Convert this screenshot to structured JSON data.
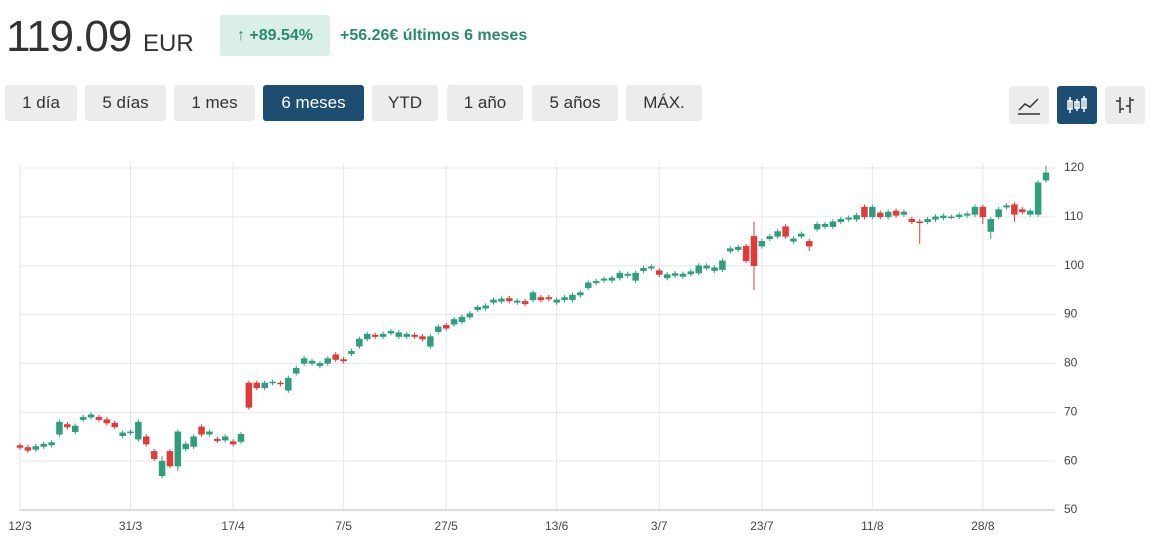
{
  "header": {
    "price": "119.09",
    "currency": "EUR",
    "change_pct": "↑ +89.54%",
    "change_abs": "+56.26€ últimos 6 meses"
  },
  "ranges": [
    "1 día",
    "5 días",
    "1 mes",
    "6 meses",
    "YTD",
    "1 año",
    "5 años",
    "MÁX."
  ],
  "active_range": "6 meses",
  "chart_data": {
    "type": "candlestick",
    "up_color": "#2f9e7f",
    "down_color": "#e03a3a",
    "grid": true,
    "categories": [
      "12/3",
      null,
      null,
      null,
      null,
      null,
      null,
      null,
      null,
      null,
      null,
      null,
      null,
      null,
      "31/3",
      null,
      null,
      null,
      null,
      null,
      null,
      null,
      null,
      null,
      null,
      null,
      null,
      "17/4",
      null,
      null,
      null,
      null,
      null,
      null,
      null,
      null,
      null,
      null,
      null,
      null,
      null,
      "7/5",
      null,
      null,
      null,
      null,
      null,
      null,
      null,
      null,
      null,
      null,
      null,
      null,
      "27/5",
      null,
      null,
      null,
      null,
      null,
      null,
      null,
      null,
      null,
      null,
      null,
      null,
      null,
      "13/6",
      null,
      null,
      null,
      null,
      null,
      null,
      null,
      null,
      null,
      null,
      null,
      null,
      "3/7",
      null,
      null,
      null,
      null,
      null,
      null,
      null,
      null,
      null,
      null,
      null,
      null,
      "23/7",
      null,
      null,
      null,
      null,
      null,
      null,
      null,
      null,
      null,
      null,
      null,
      null,
      null,
      "11/8",
      null,
      null,
      null,
      null,
      null,
      null,
      null,
      null,
      null,
      null,
      null,
      null,
      null,
      "28/8",
      null,
      null,
      null,
      null,
      null,
      null,
      null,
      null
    ],
    "open": [
      63.2,
      62.8,
      62.4,
      63,
      63.3,
      65.5,
      67.5,
      66,
      68.5,
      69,
      69,
      68.5,
      67.8,
      65.2,
      65.8,
      64.5,
      65,
      62,
      57,
      62,
      59,
      62.5,
      63,
      67,
      65.5,
      64.5,
      64.3,
      64,
      64,
      76,
      76,
      75,
      76,
      76,
      74.5,
      78,
      80,
      80,
      79.5,
      80,
      81.8,
      80.8,
      82,
      83.5,
      85,
      85.8,
      85.5,
      86.2,
      85.5,
      85.5,
      85.8,
      85.5,
      83.5,
      86.5,
      87.8,
      88,
      88.5,
      89.5,
      91,
      91.3,
      92.5,
      92.7,
      93.3,
      92.5,
      92.7,
      93,
      93.5,
      93.5,
      92.5,
      93,
      93,
      94,
      95.5,
      96.5,
      97,
      97,
      97.5,
      98,
      97,
      99,
      99.5,
      99,
      97.5,
      98,
      97.8,
      98.3,
      98.5,
      99.5,
      99,
      99.2,
      103,
      103.3,
      104,
      106,
      104,
      105.5,
      106,
      108,
      105,
      106,
      105,
      107.5,
      108,
      108,
      109,
      109.5,
      109.5,
      112,
      110,
      110.8,
      110,
      111.2,
      110.5,
      109.5,
      109,
      109,
      109.5,
      109.8,
      110,
      110,
      110.3,
      110.5,
      112,
      107,
      110,
      112,
      112.5,
      111.5,
      110.5,
      110.5,
      117.5
    ],
    "high": [
      63.7,
      63.3,
      63.5,
      64,
      64.3,
      68.5,
      68,
      67.7,
      69.5,
      70,
      69.5,
      69,
      68.3,
      66.3,
      66.5,
      68.5,
      65.5,
      62.5,
      61,
      62.5,
      66.5,
      64,
      65.5,
      67.5,
      66.5,
      65,
      65.5,
      64.5,
      66,
      76.5,
      76.5,
      76.5,
      76.7,
      76.5,
      77.5,
      79.5,
      81.5,
      81,
      80.5,
      81.5,
      82.3,
      81.3,
      83,
      85.5,
      86.5,
      86.3,
      86.5,
      87.1,
      86.8,
      86.5,
      86.3,
      86,
      86,
      88,
      88.3,
      89.5,
      90,
      90.7,
      92,
      92.3,
      93.5,
      93.7,
      93.8,
      93.3,
      93.2,
      95,
      94,
      94,
      93.5,
      94,
      94.5,
      95,
      97,
      97.3,
      97.8,
      98,
      99,
      98.8,
      99,
      100,
      100.3,
      99.5,
      98.7,
      98.9,
      98.8,
      99.3,
      100.5,
      100.5,
      100.1,
      101.5,
      104,
      104.3,
      104.5,
      109,
      105.5,
      106.5,
      107.5,
      108.5,
      106,
      107,
      105.5,
      109,
      109,
      109.5,
      110,
      110.3,
      110.8,
      112.5,
      112.5,
      111.3,
      111.5,
      111.7,
      111.5,
      110,
      109.5,
      110,
      110.5,
      110.7,
      110.5,
      110.9,
      111.1,
      112.5,
      112.5,
      110,
      112,
      112.8,
      113,
      112,
      111.7,
      117.5,
      120.5
    ],
    "low": [
      62.3,
      61.7,
      61.9,
      62.5,
      62.8,
      65,
      66.5,
      65.5,
      68,
      68.5,
      68,
      67.3,
      66.5,
      64.7,
      65.3,
      64,
      63,
      60,
      56.5,
      58.5,
      58,
      62,
      62.5,
      65,
      65,
      63.7,
      63.8,
      63,
      63.5,
      70.5,
      74.5,
      74.5,
      75.5,
      75.3,
      74,
      77.5,
      79.5,
      79.5,
      79,
      79.5,
      80.3,
      80,
      81.5,
      83,
      84.5,
      85,
      85,
      85.7,
      85,
      85,
      85,
      84.5,
      83,
      86,
      86.7,
      87.5,
      88,
      89,
      90.5,
      90.8,
      92,
      92.2,
      92.3,
      92,
      91.7,
      92.5,
      92.5,
      92.7,
      92,
      92.5,
      92.5,
      93.5,
      95,
      96,
      96.5,
      96.5,
      97,
      97.5,
      96.5,
      98.5,
      99,
      97.7,
      97,
      97.5,
      97.3,
      97.8,
      98,
      99,
      98.5,
      98.7,
      102.5,
      102.8,
      100.5,
      95,
      103.5,
      105,
      105.5,
      105.5,
      104.5,
      105.5,
      103,
      107,
      107.5,
      107.5,
      108.5,
      109,
      109,
      109.5,
      109.5,
      109.5,
      109.5,
      109.8,
      110,
      108.5,
      104.5,
      108.5,
      109,
      109.3,
      109.5,
      109.5,
      109.8,
      110,
      108.5,
      105.5,
      109.5,
      111.5,
      109,
      110.5,
      110,
      110,
      117
    ],
    "close": [
      62.8,
      62.2,
      63,
      63.5,
      63.8,
      68,
      67,
      67.2,
      69,
      69.5,
      68.5,
      67.8,
      67,
      65.8,
      66,
      68,
      63.5,
      60.5,
      60,
      59,
      66,
      63.5,
      65,
      65.5,
      66,
      64.2,
      65,
      63.5,
      65.5,
      71,
      75,
      76,
      76.2,
      75.8,
      77,
      79,
      81,
      80.5,
      80,
      81,
      80.8,
      80.5,
      82.5,
      85,
      86,
      85.5,
      86,
      86.6,
      86.3,
      86,
      85.5,
      85,
      85.5,
      87.5,
      87.2,
      89,
      89.5,
      90.2,
      91.5,
      91.8,
      93,
      93.2,
      92.8,
      92.8,
      92.2,
      94.5,
      93,
      93.2,
      93,
      93.5,
      94,
      94.5,
      96.5,
      96.8,
      97.3,
      97.5,
      98.5,
      98.3,
      98.5,
      99.5,
      99.8,
      98.2,
      98.2,
      98.4,
      98.3,
      98.8,
      100,
      100,
      99.6,
      101,
      103.5,
      103.8,
      101,
      100,
      105,
      106,
      107,
      106,
      105.5,
      106.5,
      104,
      108.5,
      108.5,
      109,
      109.5,
      109.8,
      110.3,
      110,
      112,
      110,
      111,
      110.3,
      111,
      109,
      108.8,
      109.5,
      110,
      110.2,
      110,
      110.4,
      110.6,
      112,
      110,
      109.5,
      111.5,
      112.3,
      110.5,
      111,
      111.2,
      117,
      119
    ],
    "ylim": [
      50,
      120
    ],
    "yticks": [
      50,
      60,
      70,
      80,
      90,
      100,
      110,
      120
    ]
  }
}
